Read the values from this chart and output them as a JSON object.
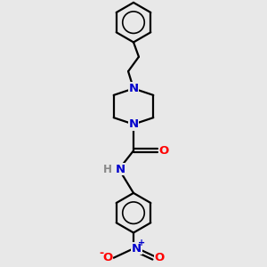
{
  "background_color": "#e8e8e8",
  "bond_color": "#000000",
  "N_color": "#0000cc",
  "O_color": "#ff0000",
  "line_width": 1.6,
  "font_size": 9.5,
  "figsize": [
    3.0,
    3.0
  ],
  "dpi": 100,
  "xlim": [
    -2.5,
    2.5
  ],
  "ylim": [
    -4.5,
    5.5
  ]
}
